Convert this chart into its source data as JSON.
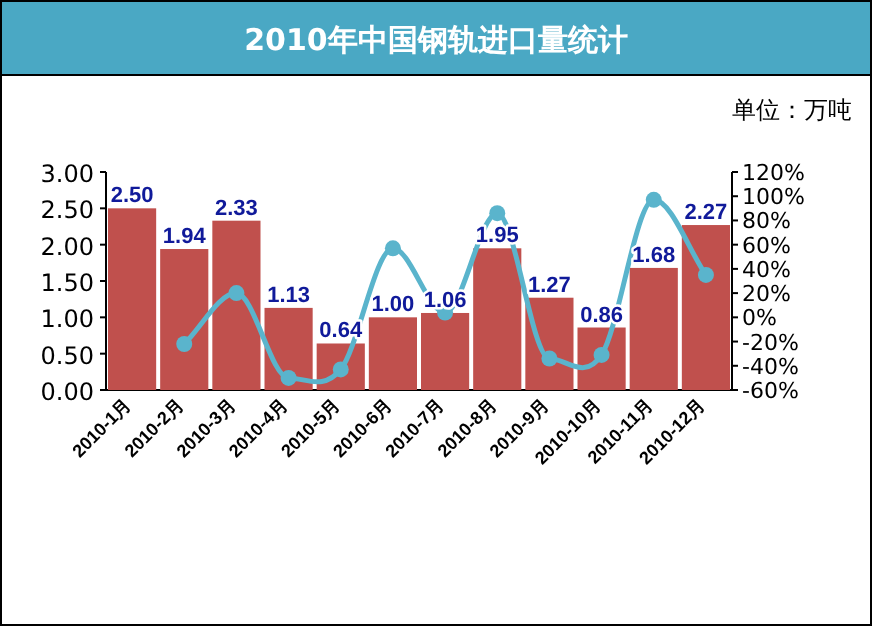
{
  "chart_data": {
    "type": "bar",
    "title": "2010年中国钢轨进口量统计",
    "annotations": [
      "单位：万吨"
    ],
    "categories": [
      "2010-1月",
      "2010-2月",
      "2010-3月",
      "2010-4月",
      "2010-5月",
      "2010-6月",
      "2010-7月",
      "2010-8月",
      "2010-9月",
      "2010-10月",
      "2010-11月",
      "2010-12月"
    ],
    "series": [
      {
        "color": "#c0504d",
        "values": [
          2.5,
          1.94,
          2.33,
          1.13,
          0.64,
          1.0,
          1.06,
          1.95,
          1.27,
          0.86,
          1.68,
          2.27
        ],
        "value_labels": [
          "2.50",
          "1.94",
          "2.33",
          "1.13",
          "0.64",
          "1.00",
          "1.06",
          "1.95",
          "1.27",
          "0.86",
          "1.68",
          "2.27"
        ]
      },
      {
        "type": "line",
        "axis": "y2",
        "color": "#5ab4cc",
        "marker": "circle",
        "values": [
          null,
          -22,
          20,
          -50,
          -43,
          57,
          4,
          86,
          -34,
          -31,
          97,
          35
        ]
      }
    ],
    "ylim": [
      0,
      3
    ],
    "yticks": [
      {
        "value": 0,
        "label": "0.00"
      },
      {
        "value": 0.5,
        "label": "0.50"
      },
      {
        "value": 1,
        "label": "1.00"
      },
      {
        "value": 1.5,
        "label": "1.50"
      },
      {
        "value": 2,
        "label": "2.00"
      },
      {
        "value": 2.5,
        "label": "2.50"
      },
      {
        "value": 3,
        "label": "3.00"
      }
    ],
    "y2lim": [
      -60,
      120
    ],
    "y2ticks": [
      {
        "value": -60,
        "label": "-60%"
      },
      {
        "value": -40,
        "label": "-40%"
      },
      {
        "value": -20,
        "label": "-20%"
      },
      {
        "value": 0,
        "label": "0%"
      },
      {
        "value": 20,
        "label": "20%"
      },
      {
        "value": 40,
        "label": "40%"
      },
      {
        "value": 60,
        "label": "60%"
      },
      {
        "value": 80,
        "label": "80%"
      },
      {
        "value": 100,
        "label": "100%"
      },
      {
        "value": 120,
        "label": "120%"
      }
    ]
  }
}
